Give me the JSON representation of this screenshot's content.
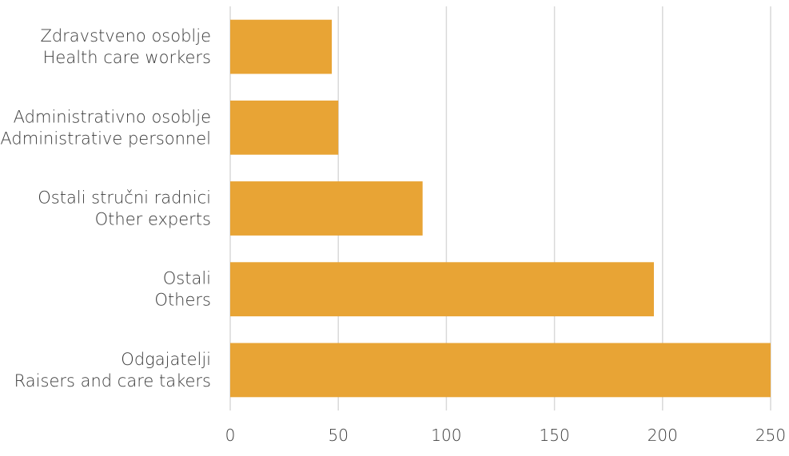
{
  "chart_data": {
    "type": "bar",
    "orientation": "horizontal",
    "categories": [
      [
        "Zdravstveno osoblje",
        "Health care workers"
      ],
      [
        "Administrativno osoblje",
        "Administrative personnel"
      ],
      [
        "Ostali stručni radnici",
        "Other experts"
      ],
      [
        "Ostali",
        "Others"
      ],
      [
        "Odgajatelji",
        "Raisers and care takers"
      ]
    ],
    "values": [
      47,
      50,
      89,
      196,
      250
    ],
    "x_ticks": [
      "0",
      "50",
      "100",
      "150",
      "200",
      "250"
    ],
    "xlim": [
      0,
      250
    ],
    "grid": true,
    "legend": "none",
    "bar_color": "#e8a435",
    "title": "",
    "xlabel": "",
    "ylabel": ""
  }
}
